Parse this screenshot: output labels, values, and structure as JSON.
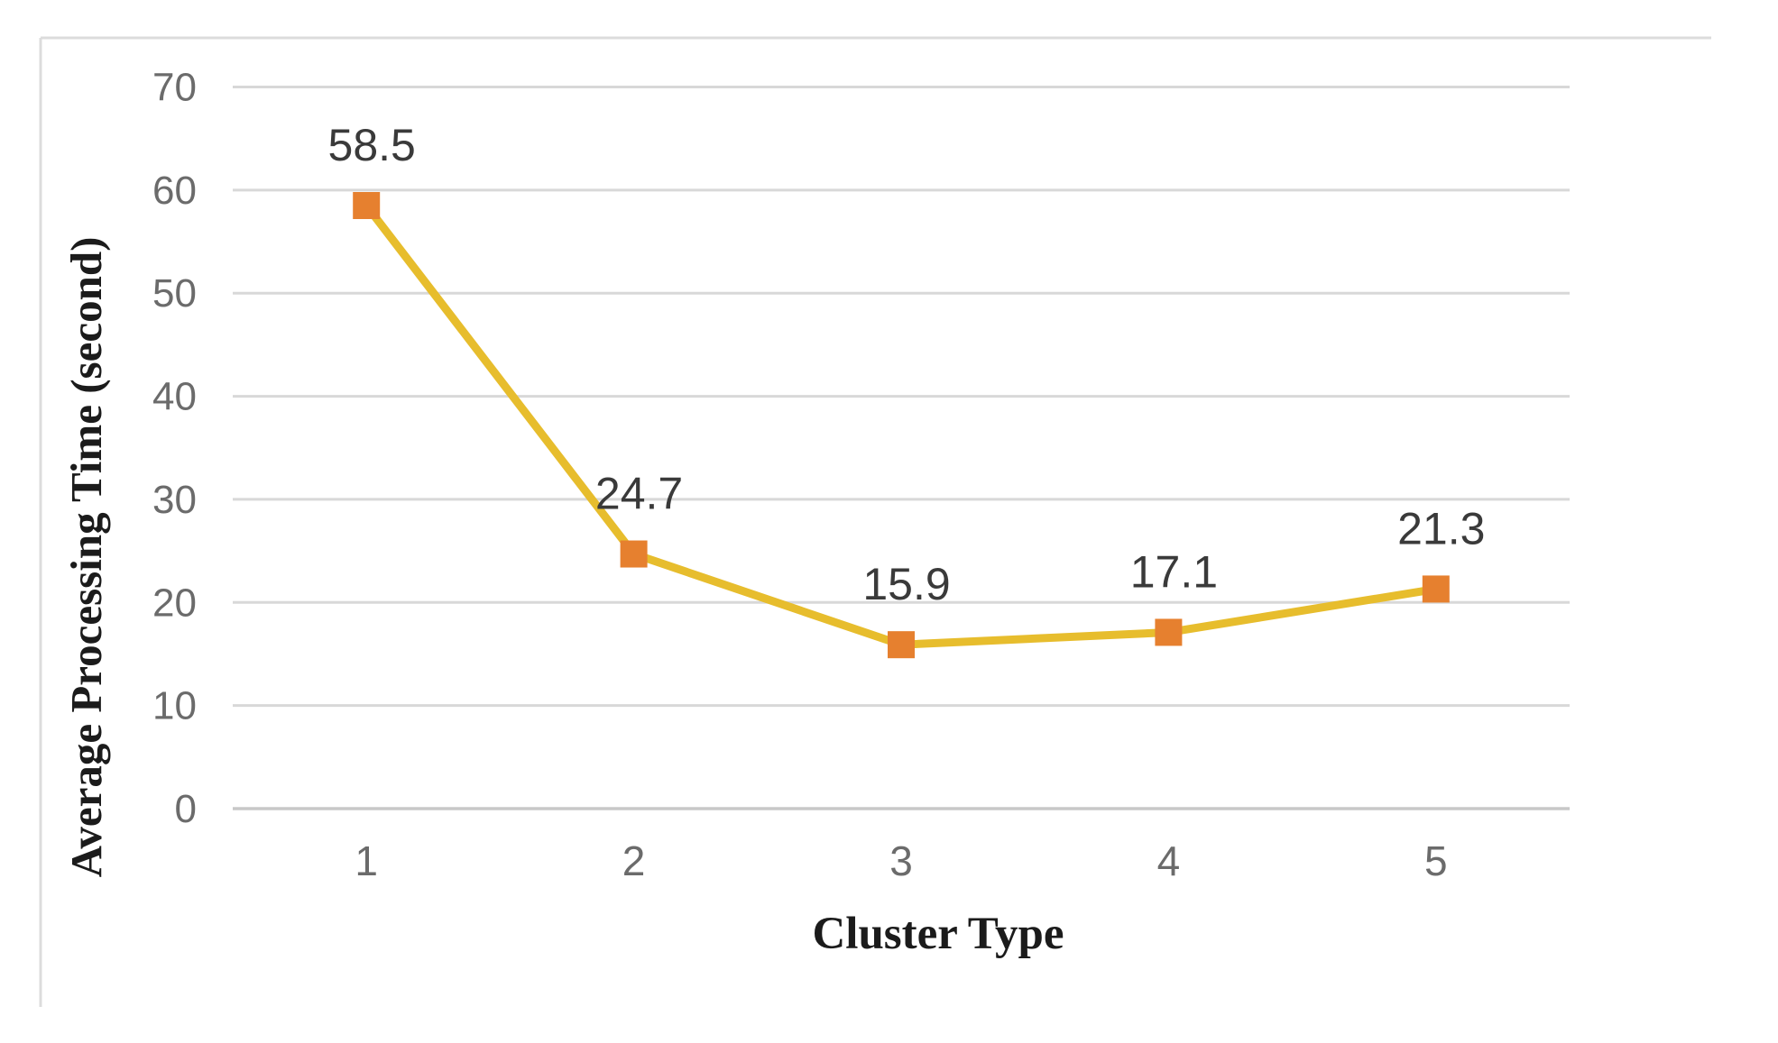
{
  "chart_data": {
    "type": "line",
    "title": "",
    "xlabel": "Cluster Type",
    "ylabel": "Average Processing Time (second)",
    "categories": [
      "1",
      "2",
      "3",
      "4",
      "5"
    ],
    "series": [
      {
        "name": "Average Processing Time",
        "values": [
          58.5,
          24.7,
          15.9,
          17.1,
          21.3
        ],
        "data_labels": [
          "58.5",
          "24.7",
          "15.9",
          "17.1",
          "21.3"
        ]
      }
    ],
    "ylim": [
      0,
      70
    ],
    "yticks": [
      "0",
      "10",
      "20",
      "30",
      "40",
      "50",
      "60",
      "70"
    ],
    "ytick_values": [
      0,
      10,
      20,
      30,
      40,
      50,
      60,
      70
    ],
    "grid": "horizontal",
    "legend": "none",
    "marker_shape": "square",
    "colors": {
      "line": "#E7BD2D",
      "marker": "#E6802F",
      "gridline": "#D8D8D8",
      "axis_line": "#C8C8C8",
      "tick_label": "#6B6B6B",
      "data_label": "#3A3A3A",
      "axis_title": "#1B1B1B",
      "chart_border": "#DCDCDC",
      "background": "#FFFFFF"
    }
  }
}
